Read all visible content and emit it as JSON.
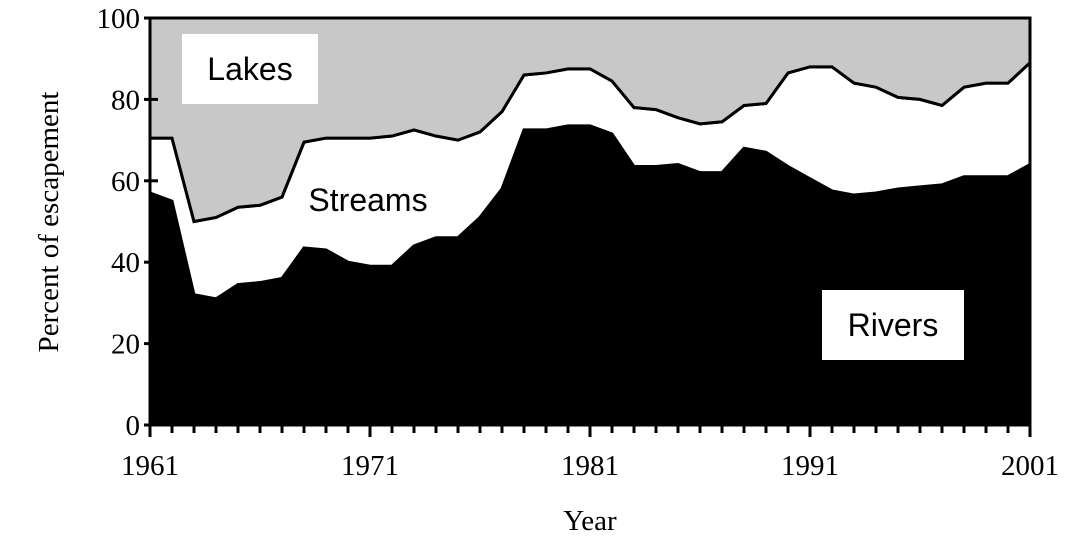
{
  "chart_data": {
    "type": "stacked-area",
    "x_label": "Year",
    "y_label": "Percent of escapement",
    "x": [
      1961,
      1962,
      1963,
      1964,
      1965,
      1966,
      1967,
      1968,
      1969,
      1970,
      1971,
      1972,
      1973,
      1974,
      1975,
      1976,
      1977,
      1978,
      1979,
      1980,
      1981,
      1982,
      1983,
      1984,
      1985,
      1986,
      1987,
      1988,
      1989,
      1990,
      1991,
      1992,
      1993,
      1994,
      1995,
      1996,
      1997,
      1998,
      1999,
      2000,
      2001
    ],
    "series": [
      {
        "name": "Rivers",
        "color": "#000000",
        "values": [
          57,
          55,
          32,
          31,
          34.5,
          35,
          36,
          43.5,
          43,
          40,
          39,
          39,
          44,
          46,
          46,
          51,
          58,
          72.5,
          72.5,
          73.5,
          73.5,
          71.5,
          63.5,
          63.5,
          64,
          62,
          62,
          68,
          67,
          63.5,
          60.5,
          57.5,
          56.5,
          57,
          58,
          58.5,
          59,
          61,
          61,
          61,
          64
        ]
      },
      {
        "name": "Streams",
        "color": "#ffffff",
        "values": [
          13.5,
          15.5,
          18,
          20,
          19,
          19,
          20,
          26,
          27.5,
          30.5,
          31.5,
          32,
          28.5,
          25,
          24,
          21,
          19,
          13.5,
          14,
          14,
          14,
          13,
          14.5,
          14,
          11.5,
          12,
          12.5,
          10.5,
          12,
          23,
          27.5,
          30.5,
          27.5,
          26,
          22.5,
          21.5,
          19.5,
          22,
          23,
          23,
          25
        ]
      },
      {
        "name": "Lakes",
        "color": "#c8c8c8",
        "values": [
          29.5,
          29.5,
          50,
          49,
          46.5,
          46,
          44,
          30.5,
          29.5,
          29.5,
          29.5,
          29,
          27.5,
          29,
          30,
          28,
          23,
          14,
          13.5,
          12.5,
          12.5,
          15.5,
          22,
          22.5,
          24.5,
          26,
          25.5,
          21.5,
          21,
          13.5,
          12,
          12,
          16,
          17,
          19.5,
          20,
          21.5,
          17,
          16,
          16,
          11
        ]
      }
    ],
    "xlim": [
      1961,
      2001
    ],
    "xticks": [
      1961,
      1971,
      1981,
      1991,
      2001
    ],
    "ylim": [
      0,
      100
    ],
    "yticks": [
      0,
      20,
      40,
      60,
      80,
      100
    ]
  }
}
